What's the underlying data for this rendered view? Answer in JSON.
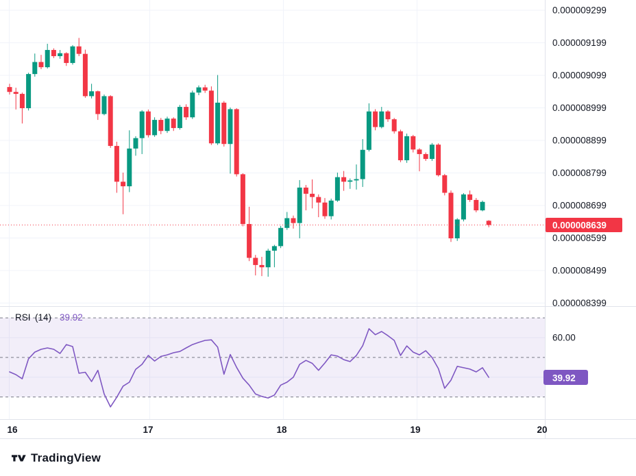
{
  "colors": {
    "up": "#089981",
    "down": "#f23645",
    "rsi_line": "#7e57c2",
    "rsi_badge_bg": "#7e57c2",
    "price_badge_bg": "#f23645",
    "badge_text": "#ffffff",
    "band_fill": "rgba(126,87,194,0.10)",
    "band_dash": "#787b86",
    "grid": "#f0f3fa",
    "border": "#e0e3eb",
    "axis_text": "#131722",
    "last_price_line": "#f23645"
  },
  "branding": {
    "logo_text": "TradingView"
  },
  "chart_data": {
    "type": "candlestick",
    "price_unit": "each integer = 1e-9 (axis shows 0.000000xxx)",
    "price_axis": {
      "labels": [
        "0.000009299",
        "0.000009199",
        "0.000009099",
        "0.000008999",
        "0.000008899",
        "0.000008799",
        "0.000008699",
        "0.000008599",
        "0.000008499",
        "0.000008399"
      ],
      "values": [
        9299,
        9199,
        9099,
        8999,
        8899,
        8799,
        8699,
        8599,
        8499,
        8399
      ]
    },
    "last_price": {
      "label": "0.000008639",
      "value": 8639
    },
    "time_axis": {
      "labels": [
        "16",
        "17",
        "18",
        "19",
        "20"
      ]
    },
    "candles_ohlc": [
      [
        9063,
        9073,
        9040,
        9048
      ],
      [
        9048,
        9061,
        8994,
        9042
      ],
      [
        9042,
        9046,
        8951,
        8998
      ],
      [
        8998,
        9107,
        8991,
        9103
      ],
      [
        9103,
        9166,
        9095,
        9140
      ],
      [
        9140,
        9162,
        9118,
        9124
      ],
      [
        9124,
        9196,
        9120,
        9177
      ],
      [
        9177,
        9182,
        9152,
        9158
      ],
      [
        9158,
        9177,
        9150,
        9167
      ],
      [
        9167,
        9170,
        9128,
        9137
      ],
      [
        9137,
        9192,
        9132,
        9188
      ],
      [
        9188,
        9214,
        9158,
        9165
      ],
      [
        9165,
        9178,
        9030,
        9035
      ],
      [
        9035,
        9073,
        9028,
        9050
      ],
      [
        9050,
        9052,
        8962,
        8980
      ],
      [
        8980,
        9040,
        8976,
        9035
      ],
      [
        9035,
        9038,
        8876,
        8882
      ],
      [
        8882,
        8895,
        8738,
        8772
      ],
      [
        8772,
        8800,
        8672,
        8758
      ],
      [
        8758,
        8930,
        8740,
        8874
      ],
      [
        8874,
        8912,
        8852,
        8906
      ],
      [
        8906,
        8992,
        8857,
        8988
      ],
      [
        8988,
        8994,
        8908,
        8915
      ],
      [
        8915,
        8970,
        8910,
        8962
      ],
      [
        8962,
        8968,
        8918,
        8928
      ],
      [
        8928,
        8972,
        8922,
        8966
      ],
      [
        8966,
        8970,
        8928,
        8937
      ],
      [
        8937,
        9008,
        8932,
        9002
      ],
      [
        9002,
        9010,
        8962,
        8970
      ],
      [
        8970,
        9052,
        8965,
        9046
      ],
      [
        9046,
        9068,
        9038,
        9062
      ],
      [
        9062,
        9070,
        9045,
        9052
      ],
      [
        9052,
        9065,
        8885,
        8890
      ],
      [
        8890,
        9100,
        8885,
        9015
      ],
      [
        9015,
        9020,
        8880,
        8888
      ],
      [
        8888,
        9000,
        8797,
        8995
      ],
      [
        8995,
        8998,
        8788,
        8795
      ],
      [
        8795,
        8798,
        8635,
        8642
      ],
      [
        8642,
        8695,
        8528,
        8538
      ],
      [
        8538,
        8547,
        8484,
        8516
      ],
      [
        8516,
        8541,
        8482,
        8509
      ],
      [
        8509,
        8566,
        8480,
        8560
      ],
      [
        8560,
        8578,
        8509,
        8574
      ],
      [
        8574,
        8636,
        8568,
        8630
      ],
      [
        8630,
        8679,
        8624,
        8660
      ],
      [
        8660,
        8668,
        8628,
        8645
      ],
      [
        8645,
        8777,
        8598,
        8754
      ],
      [
        8754,
        8762,
        8684,
        8735
      ],
      [
        8735,
        8779,
        8690,
        8725
      ],
      [
        8725,
        8733,
        8663,
        8708
      ],
      [
        8708,
        8722,
        8658,
        8666
      ],
      [
        8666,
        8720,
        8656,
        8714
      ],
      [
        8714,
        8800,
        8710,
        8786
      ],
      [
        8786,
        8805,
        8744,
        8772
      ],
      [
        8772,
        8782,
        8750,
        8776
      ],
      [
        8776,
        8825,
        8748,
        8780
      ],
      [
        8780,
        8903,
        8756,
        8870
      ],
      [
        8870,
        9013,
        8865,
        8988
      ],
      [
        8988,
        8995,
        8930,
        8940
      ],
      [
        8940,
        9002,
        8936,
        8988
      ],
      [
        8988,
        8992,
        8956,
        8964
      ],
      [
        8964,
        8968,
        8920,
        8927
      ],
      [
        8927,
        8932,
        8832,
        8838
      ],
      [
        8838,
        8920,
        8830,
        8912
      ],
      [
        8912,
        8916,
        8862,
        8871
      ],
      [
        8871,
        8875,
        8804,
        8857
      ],
      [
        8857,
        8862,
        8836,
        8842
      ],
      [
        8842,
        8891,
        8836,
        8886
      ],
      [
        8886,
        8890,
        8788,
        8792
      ],
      [
        8792,
        8796,
        8730,
        8738
      ],
      [
        8738,
        8745,
        8587,
        8598
      ],
      [
        8598,
        8660,
        8590,
        8656
      ],
      [
        8656,
        8737,
        8650,
        8733
      ],
      [
        8733,
        8745,
        8710,
        8716
      ],
      [
        8716,
        8722,
        8678,
        8684
      ],
      [
        8684,
        8714,
        8681,
        8710
      ],
      [
        8652,
        8654,
        8632,
        8639
      ]
    ],
    "rsi": {
      "label": "RSI",
      "params": "(14)",
      "value_label": "39.92",
      "current_value": 39.92,
      "axis_label": "60.00",
      "axis_label_value": 60,
      "grid_values": [
        60,
        40
      ],
      "levels": {
        "upper": 70,
        "middle": 50,
        "lower": 30
      },
      "values": [
        42.7,
        41.3,
        39.2,
        49.3,
        52.7,
        54.1,
        54.8,
        54.1,
        52.0,
        56.5,
        55.5,
        42.0,
        42.5,
        37.8,
        43.5,
        31.5,
        25.0,
        29.9,
        35.5,
        37.5,
        44.0,
        46.5,
        51.0,
        48.2,
        50.5,
        51.3,
        52.4,
        53.0,
        54.8,
        56.5,
        57.6,
        58.6,
        58.9,
        55.2,
        41.5,
        51.5,
        45.0,
        39.5,
        36.0,
        31.5,
        30.3,
        29.5,
        31.0,
        36.0,
        37.5,
        40.0,
        46.5,
        48.5,
        47.0,
        43.5,
        47.2,
        51.3,
        50.7,
        48.9,
        47.9,
        51.0,
        55.9,
        64.5,
        61.5,
        63.1,
        61.0,
        58.6,
        51.0,
        55.8,
        52.7,
        51.3,
        53.4,
        50.0,
        44.4,
        34.4,
        38.5,
        45.5,
        44.8,
        44.1,
        42.7,
        44.8,
        39.92
      ]
    }
  }
}
